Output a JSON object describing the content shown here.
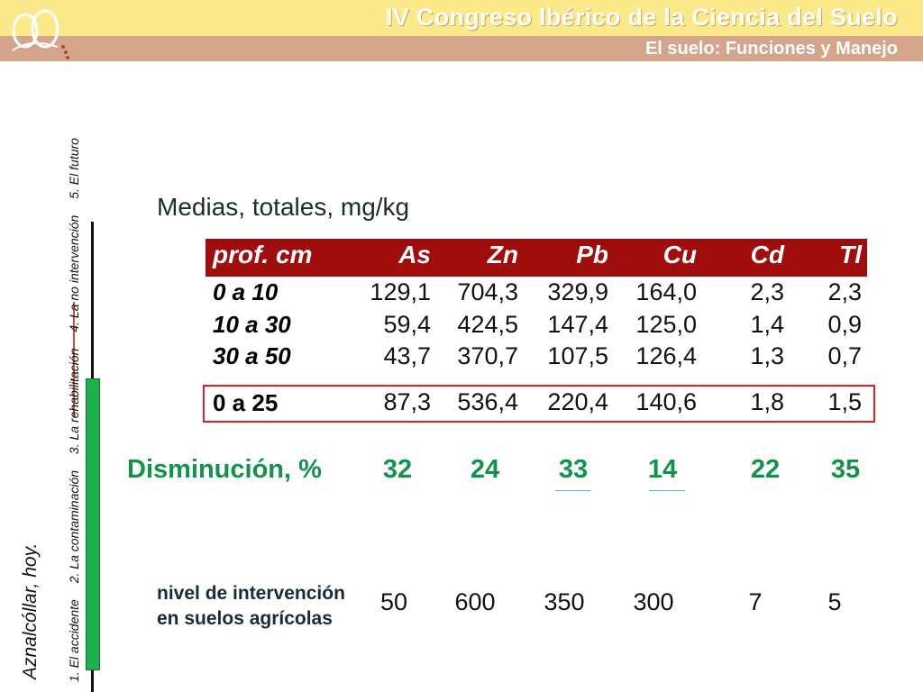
{
  "header": {
    "title": "IV Congreso Ibérico de la Ciencia del Suelo",
    "subtitle": "El suelo: Funciones y Manejo"
  },
  "sidebar": {
    "place": "Aznalcóllar, hoy.",
    "sections": [
      "1. El accidente",
      "2. La contaminación",
      "3. La rehabilitación",
      "4. La no intervención",
      "5. El futuro"
    ]
  },
  "main": {
    "heading": "Medias, totales, mg/kg",
    "table": {
      "columns": [
        "prof. cm",
        "As",
        "Zn",
        "Pb",
        "Cu",
        "Cd",
        "Tl"
      ],
      "rows": [
        {
          "label": "0 a 10",
          "values": [
            "129,1",
            "704,3",
            "329,9",
            "164,0",
            "2,3",
            "2,3"
          ]
        },
        {
          "label": "10 a 30",
          "values": [
            "59,4",
            "424,5",
            "147,4",
            "125,0",
            "1,4",
            "0,9"
          ]
        },
        {
          "label": "30 a 50",
          "values": [
            "43,7",
            "370,7",
            "107,5",
            "126,4",
            "1,3",
            "0,7"
          ]
        }
      ],
      "highlight": {
        "label": "0 a 25",
        "values": [
          "87,3",
          "536,4",
          "220,4",
          "140,6",
          "1,8",
          "1,5"
        ]
      }
    },
    "decrease": {
      "label": "Disminución, %",
      "values": [
        "32",
        "24",
        "33",
        "14",
        "22",
        "35"
      ]
    },
    "intervention": {
      "label_line1": "nivel de intervención",
      "label_line2": "en suelos agrícolas",
      "values": [
        "50",
        "600",
        "350",
        "300",
        "7",
        "5"
      ]
    }
  },
  "colors": {
    "header_top": "#fbe98a",
    "header_bottom": "#d4a58a",
    "table_header": "#a00d0d",
    "highlight_border": "#e02020",
    "decrease_text": "#12934a",
    "progress_bar": "#1eb04b"
  }
}
